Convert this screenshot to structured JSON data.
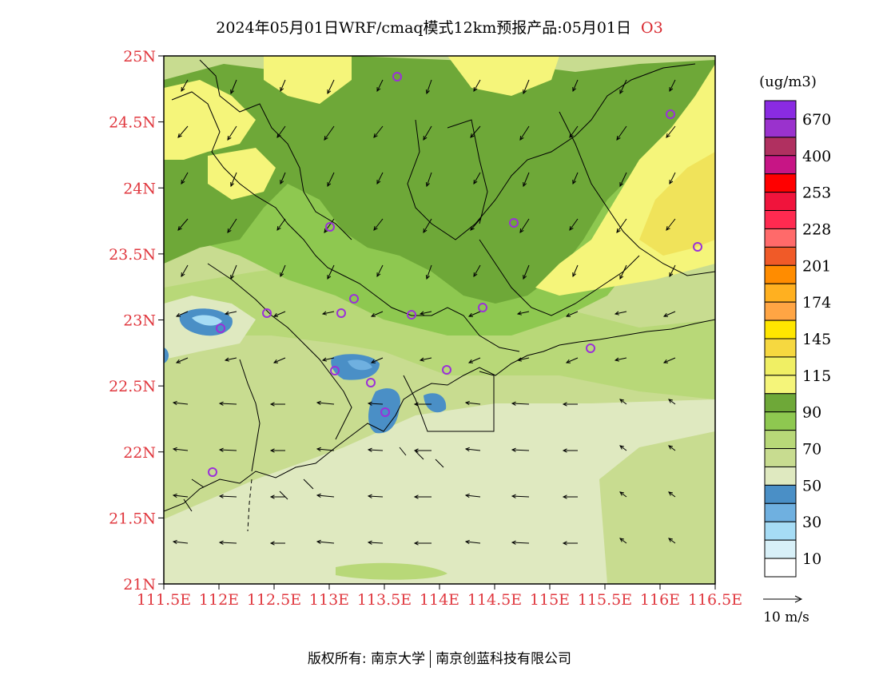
{
  "title": {
    "main": "2024年05月01日WRF/cmaq模式12km预报产品:05月01日",
    "pollutant": "O3"
  },
  "map": {
    "lat_labels": [
      "25N",
      "24.5N",
      "24N",
      "23.5N",
      "23N",
      "22.5N",
      "22N",
      "21.5N",
      "21N"
    ],
    "lon_labels": [
      "111.5E",
      "112E",
      "112.5E",
      "113E",
      "113.5E",
      "114E",
      "114.5E",
      "115E",
      "115.5E",
      "116E",
      "116.5E"
    ],
    "axis_color": "#e0383f"
  },
  "legend": {
    "unit": "(ug/m3)",
    "bins": [
      {
        "color": "#8a2be2",
        "label": "670"
      },
      {
        "color": "#9a32cd",
        "label": ""
      },
      {
        "color": "#b03060",
        "label": "400"
      },
      {
        "color": "#c71585",
        "label": ""
      },
      {
        "color": "#ff0000",
        "label": "253"
      },
      {
        "color": "#f0143c",
        "label": ""
      },
      {
        "color": "#ff2a50",
        "label": "228"
      },
      {
        "color": "#ff6a6a",
        "label": ""
      },
      {
        "color": "#f05a28",
        "label": "201"
      },
      {
        "color": "#ff8c00",
        "label": ""
      },
      {
        "color": "#ffb020",
        "label": "174"
      },
      {
        "color": "#ffa544",
        "label": ""
      },
      {
        "color": "#ffe600",
        "label": "145"
      },
      {
        "color": "#f6d840",
        "label": ""
      },
      {
        "color": "#f0ef64",
        "label": "115"
      },
      {
        "color": "#f5f57a",
        "label": ""
      },
      {
        "color": "#6ea838",
        "label": "90"
      },
      {
        "color": "#8ec850",
        "label": ""
      },
      {
        "color": "#b8d878",
        "label": "70"
      },
      {
        "color": "#c8dc90",
        "label": ""
      },
      {
        "color": "#dfe9c0",
        "label": "50"
      },
      {
        "color": "#4a8fc6",
        "label": ""
      },
      {
        "color": "#6fb0e0",
        "label": "30"
      },
      {
        "color": "#a6dcf5",
        "label": ""
      },
      {
        "color": "#d8f0f8",
        "label": "10"
      },
      {
        "color": "#ffffff",
        "label": ""
      }
    ],
    "wind_scale": "10 m/s"
  },
  "footer": {
    "left": "版权所有: 南京大学",
    "right": "南京创蓝科技有限公司"
  }
}
